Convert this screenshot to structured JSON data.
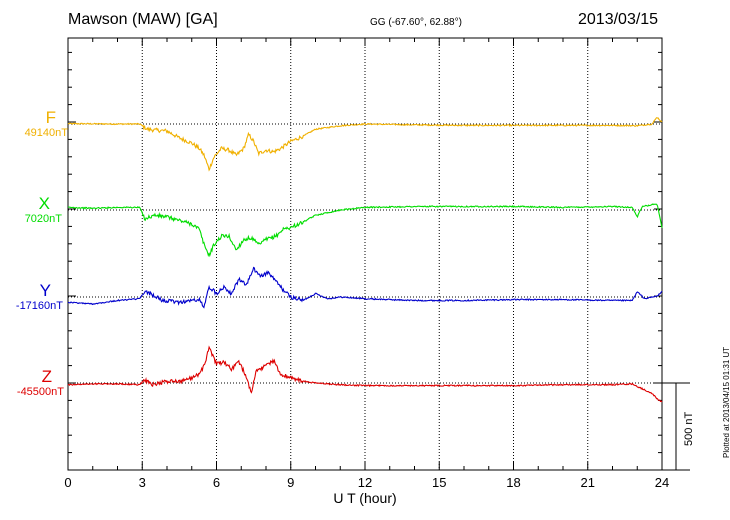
{
  "header": {
    "station": "Mawson (MAW)  [GA]",
    "coords": "GG (-67.60°,  62.88°)",
    "date": "2013/03/15"
  },
  "footer": {
    "plotted": "Plotted at 2013/04/15 01:31  UT"
  },
  "chart_data": {
    "type": "line",
    "title": "",
    "xlabel": "U T (hour)",
    "ylabel": "",
    "xlim": [
      0,
      24
    ],
    "x_ticks": [
      0,
      3,
      6,
      9,
      12,
      15,
      18,
      21,
      24
    ],
    "grid": true,
    "scale_bar": {
      "label": "500 nT",
      "value_nT": 500
    },
    "series": [
      {
        "name": "F",
        "baseline_label": "49140nT",
        "color": "#f0b000",
        "points": [
          [
            0,
            2
          ],
          [
            1,
            1
          ],
          [
            2,
            0
          ],
          [
            2.9,
            0
          ],
          [
            3.2,
            -30
          ],
          [
            3.5,
            -35
          ],
          [
            4,
            -40
          ],
          [
            4.5,
            -80
          ],
          [
            5,
            -110
          ],
          [
            5.3,
            -140
          ],
          [
            5.5,
            -180
          ],
          [
            5.7,
            -260
          ],
          [
            5.9,
            -190
          ],
          [
            6.2,
            -140
          ],
          [
            6.5,
            -150
          ],
          [
            6.8,
            -180
          ],
          [
            7.1,
            -140
          ],
          [
            7.3,
            -60
          ],
          [
            7.5,
            -100
          ],
          [
            7.7,
            -170
          ],
          [
            8,
            -150
          ],
          [
            8.3,
            -160
          ],
          [
            8.6,
            -140
          ],
          [
            9,
            -100
          ],
          [
            9.5,
            -70
          ],
          [
            10,
            -30
          ],
          [
            11,
            -10
          ],
          [
            12,
            0
          ],
          [
            14,
            -5
          ],
          [
            16,
            -8
          ],
          [
            18,
            -8
          ],
          [
            20,
            -8
          ],
          [
            22,
            -8
          ],
          [
            23,
            -10
          ],
          [
            23.6,
            0
          ],
          [
            23.8,
            40
          ],
          [
            24,
            10
          ]
        ]
      },
      {
        "name": "X",
        "baseline_label": "7020nT",
        "color": "#00dd00",
        "points": [
          [
            0,
            15
          ],
          [
            1,
            10
          ],
          [
            2,
            15
          ],
          [
            2.9,
            15
          ],
          [
            3.1,
            -50
          ],
          [
            3.5,
            -30
          ],
          [
            4,
            -40
          ],
          [
            4.5,
            -60
          ],
          [
            5,
            -80
          ],
          [
            5.3,
            -110
          ],
          [
            5.5,
            -200
          ],
          [
            5.7,
            -260
          ],
          [
            5.9,
            -200
          ],
          [
            6.2,
            -150
          ],
          [
            6.5,
            -150
          ],
          [
            6.8,
            -230
          ],
          [
            7.1,
            -170
          ],
          [
            7.4,
            -160
          ],
          [
            7.7,
            -200
          ],
          [
            8,
            -170
          ],
          [
            8.4,
            -150
          ],
          [
            8.7,
            -110
          ],
          [
            9,
            -100
          ],
          [
            9.5,
            -70
          ],
          [
            10,
            -30
          ],
          [
            11,
            0
          ],
          [
            12,
            15
          ],
          [
            14,
            20
          ],
          [
            16,
            20
          ],
          [
            18,
            20
          ],
          [
            20,
            15
          ],
          [
            22,
            20
          ],
          [
            22.8,
            15
          ],
          [
            23,
            -40
          ],
          [
            23.2,
            20
          ],
          [
            23.8,
            35
          ],
          [
            24,
            -100
          ]
        ]
      },
      {
        "name": "Y",
        "baseline_label": "-17160nT",
        "color": "#0000cc",
        "points": [
          [
            0,
            -30
          ],
          [
            1,
            -40
          ],
          [
            2,
            -20
          ],
          [
            2.9,
            -10
          ],
          [
            3.1,
            30
          ],
          [
            3.4,
            15
          ],
          [
            3.8,
            -20
          ],
          [
            4.5,
            -30
          ],
          [
            5,
            -20
          ],
          [
            5.3,
            -15
          ],
          [
            5.5,
            -60
          ],
          [
            5.7,
            60
          ],
          [
            6,
            20
          ],
          [
            6.3,
            60
          ],
          [
            6.6,
            20
          ],
          [
            6.9,
            100
          ],
          [
            7.2,
            70
          ],
          [
            7.5,
            160
          ],
          [
            7.8,
            120
          ],
          [
            8.1,
            140
          ],
          [
            8.4,
            90
          ],
          [
            8.7,
            40
          ],
          [
            9,
            0
          ],
          [
            9.5,
            -20
          ],
          [
            10,
            20
          ],
          [
            10.5,
            -10
          ],
          [
            11,
            0
          ],
          [
            12,
            -10
          ],
          [
            14,
            -20
          ],
          [
            16,
            -20
          ],
          [
            18,
            -15
          ],
          [
            20,
            -15
          ],
          [
            22,
            -20
          ],
          [
            22.8,
            -20
          ],
          [
            23,
            30
          ],
          [
            23.3,
            -10
          ],
          [
            23.8,
            5
          ],
          [
            24,
            30
          ]
        ]
      },
      {
        "name": "Z",
        "baseline_label": "-45500nT",
        "color": "#dd0000",
        "points": [
          [
            0,
            -10
          ],
          [
            1,
            -5
          ],
          [
            2,
            -5
          ],
          [
            2.9,
            -10
          ],
          [
            3.1,
            20
          ],
          [
            3.4,
            -10
          ],
          [
            4,
            10
          ],
          [
            4.5,
            10
          ],
          [
            5,
            30
          ],
          [
            5.3,
            50
          ],
          [
            5.5,
            100
          ],
          [
            5.7,
            200
          ],
          [
            6,
            110
          ],
          [
            6.3,
            120
          ],
          [
            6.6,
            80
          ],
          [
            6.9,
            120
          ],
          [
            7.2,
            40
          ],
          [
            7.4,
            -60
          ],
          [
            7.6,
            70
          ],
          [
            8,
            100
          ],
          [
            8.3,
            130
          ],
          [
            8.6,
            50
          ],
          [
            9,
            30
          ],
          [
            9.5,
            10
          ],
          [
            10,
            0
          ],
          [
            11,
            -10
          ],
          [
            12,
            -15
          ],
          [
            14,
            -15
          ],
          [
            16,
            -15
          ],
          [
            18,
            -15
          ],
          [
            20,
            -10
          ],
          [
            22,
            -10
          ],
          [
            22.8,
            -5
          ],
          [
            23,
            -20
          ],
          [
            23.3,
            -40
          ],
          [
            23.6,
            -60
          ],
          [
            23.8,
            -90
          ],
          [
            24,
            -110
          ]
        ]
      }
    ]
  }
}
